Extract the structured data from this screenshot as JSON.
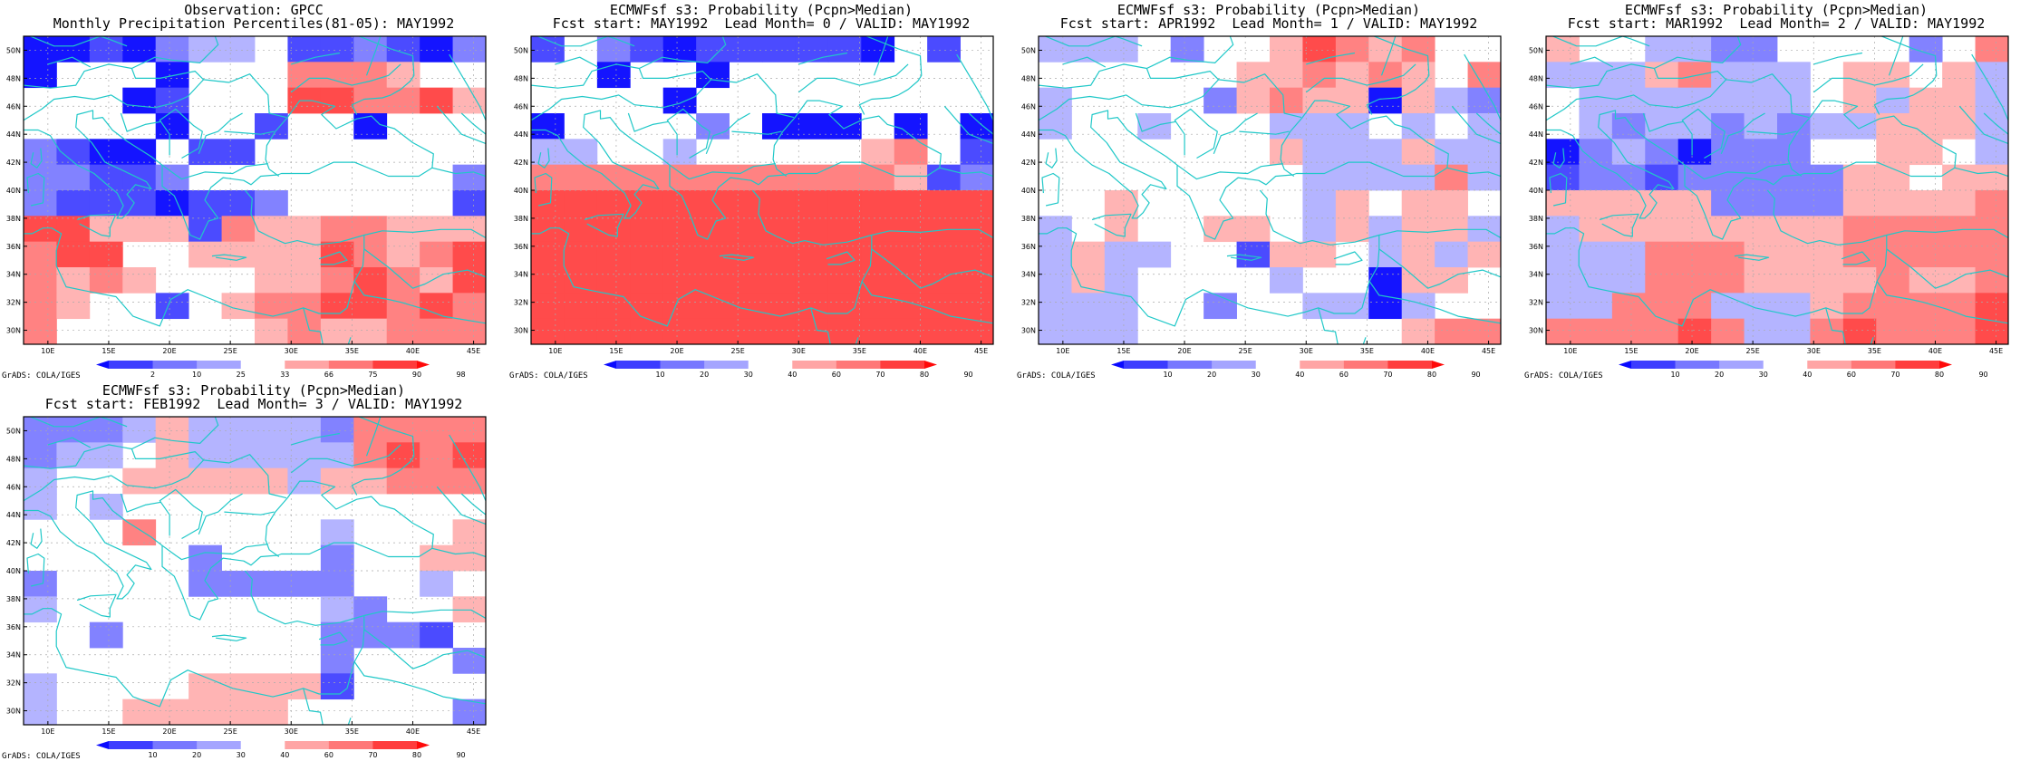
{
  "panels": [
    {
      "id": "obs",
      "title1": "Observation: GPCC",
      "title2": "Monthly Precipitation Percentiles(81-05): MAY1992",
      "colorbar_labels": [
        "2",
        "10",
        "25",
        "33",
        "66",
        "75",
        "90",
        "98"
      ],
      "grid": [
        [
          1,
          1,
          2,
          1,
          3,
          4,
          4,
          0,
          2,
          2,
          3,
          2,
          1,
          3
        ],
        [
          1,
          0,
          0,
          0,
          1,
          0,
          0,
          0,
          6,
          6,
          6,
          5,
          0,
          0
        ],
        [
          0,
          0,
          0,
          1,
          2,
          0,
          0,
          0,
          7,
          7,
          6,
          6,
          7,
          5
        ],
        [
          0,
          0,
          0,
          0,
          1,
          0,
          0,
          2,
          0,
          0,
          1,
          0,
          0,
          0
        ],
        [
          3,
          2,
          1,
          1,
          0,
          2,
          2,
          0,
          0,
          0,
          0,
          0,
          0,
          0
        ],
        [
          3,
          3,
          2,
          2,
          3,
          0,
          0,
          0,
          0,
          0,
          0,
          0,
          0,
          3
        ],
        [
          3,
          2,
          2,
          2,
          1,
          2,
          2,
          3,
          0,
          0,
          0,
          0,
          0,
          2
        ],
        [
          7,
          7,
          5,
          5,
          5,
          2,
          6,
          5,
          5,
          6,
          6,
          5,
          5,
          5
        ],
        [
          6,
          7,
          7,
          0,
          0,
          5,
          5,
          5,
          5,
          7,
          6,
          5,
          6,
          7
        ],
        [
          6,
          5,
          6,
          5,
          0,
          0,
          0,
          5,
          5,
          6,
          7,
          6,
          5,
          7
        ],
        [
          6,
          5,
          0,
          0,
          2,
          0,
          5,
          6,
          6,
          7,
          7,
          6,
          7,
          6
        ],
        [
          6,
          0,
          0,
          0,
          0,
          0,
          0,
          5,
          6,
          5,
          5,
          6,
          6,
          6
        ]
      ]
    },
    {
      "id": "lead0",
      "title1": "ECMWFsf s3: Probability (Pcpn>Median)",
      "title2": "Fcst start: MAY1992  Lead Month= 0 / VALID: MAY1992",
      "colorbar_labels": [
        "10",
        "20",
        "30",
        "40",
        "60",
        "70",
        "80",
        "90"
      ],
      "grid": [
        [
          2,
          0,
          3,
          2,
          1,
          2,
          2,
          2,
          2,
          2,
          1,
          0,
          2,
          0
        ],
        [
          0,
          0,
          1,
          0,
          0,
          1,
          0,
          0,
          0,
          0,
          0,
          0,
          0,
          0
        ],
        [
          0,
          0,
          0,
          0,
          1,
          0,
          0,
          0,
          0,
          0,
          0,
          0,
          0,
          0
        ],
        [
          1,
          0,
          0,
          0,
          0,
          3,
          0,
          1,
          1,
          1,
          0,
          1,
          0,
          1
        ],
        [
          4,
          4,
          0,
          0,
          4,
          0,
          0,
          0,
          0,
          0,
          5,
          6,
          0,
          2
        ],
        [
          6,
          6,
          6,
          6,
          6,
          6,
          6,
          6,
          6,
          6,
          6,
          5,
          2,
          3
        ],
        [
          7,
          7,
          7,
          7,
          7,
          7,
          7,
          7,
          7,
          7,
          7,
          7,
          7,
          7
        ],
        [
          7,
          7,
          7,
          7,
          7,
          7,
          7,
          7,
          7,
          7,
          7,
          7,
          7,
          7
        ],
        [
          7,
          7,
          7,
          7,
          7,
          7,
          7,
          7,
          7,
          7,
          7,
          7,
          7,
          7
        ],
        [
          7,
          7,
          7,
          7,
          7,
          7,
          7,
          7,
          7,
          7,
          7,
          7,
          7,
          7
        ],
        [
          7,
          7,
          7,
          7,
          7,
          7,
          7,
          7,
          7,
          7,
          7,
          7,
          7,
          7
        ],
        [
          7,
          7,
          7,
          7,
          7,
          7,
          7,
          7,
          7,
          7,
          7,
          7,
          7,
          7
        ]
      ]
    },
    {
      "id": "lead1",
      "title1": "ECMWFsf s3: Probability (Pcpn>Median)",
      "title2": "Fcst start: APR1992  Lead Month= 1 / VALID: MAY1992",
      "colorbar_labels": [
        "10",
        "20",
        "30",
        "40",
        "60",
        "70",
        "80",
        "90"
      ],
      "grid": [
        [
          4,
          4,
          4,
          0,
          3,
          0,
          0,
          5,
          7,
          6,
          5,
          6,
          0,
          0
        ],
        [
          0,
          0,
          0,
          0,
          0,
          0,
          5,
          5,
          6,
          5,
          6,
          5,
          0,
          6
        ],
        [
          4,
          0,
          0,
          0,
          0,
          3,
          5,
          6,
          5,
          5,
          1,
          5,
          4,
          3
        ],
        [
          4,
          0,
          0,
          4,
          0,
          0,
          0,
          4,
          4,
          4,
          0,
          4,
          0,
          4
        ],
        [
          0,
          0,
          0,
          0,
          0,
          0,
          0,
          5,
          4,
          4,
          4,
          5,
          4,
          4
        ],
        [
          0,
          0,
          0,
          0,
          0,
          0,
          0,
          0,
          4,
          4,
          4,
          4,
          6,
          4
        ],
        [
          0,
          0,
          5,
          0,
          0,
          0,
          0,
          0,
          4,
          5,
          0,
          5,
          5,
          0
        ],
        [
          4,
          0,
          5,
          0,
          0,
          5,
          5,
          0,
          4,
          5,
          4,
          5,
          5,
          4
        ],
        [
          4,
          5,
          4,
          4,
          0,
          0,
          2,
          5,
          5,
          0,
          4,
          5,
          4,
          5
        ],
        [
          4,
          5,
          4,
          0,
          0,
          0,
          0,
          4,
          0,
          0,
          1,
          5,
          5,
          0
        ],
        [
          4,
          4,
          4,
          0,
          0,
          3,
          0,
          0,
          4,
          4,
          1,
          4,
          0,
          0
        ],
        [
          4,
          4,
          4,
          0,
          0,
          0,
          0,
          0,
          0,
          0,
          0,
          5,
          6,
          6
        ]
      ]
    },
    {
      "id": "lead2",
      "title1": "ECMWFsf s3: Probability (Pcpn>Median)",
      "title2": "Fcst start: MAR1992  Lead Month= 2 / VALID: MAY1992",
      "colorbar_labels": [
        "10",
        "20",
        "30",
        "40",
        "60",
        "70",
        "80",
        "90"
      ],
      "grid": [
        [
          5,
          0,
          0,
          4,
          4,
          3,
          3,
          0,
          0,
          0,
          0,
          3,
          0,
          6
        ],
        [
          4,
          4,
          4,
          5,
          6,
          4,
          4,
          4,
          0,
          5,
          5,
          0,
          5,
          4
        ],
        [
          0,
          4,
          4,
          4,
          4,
          4,
          4,
          4,
          0,
          5,
          4,
          5,
          5,
          4
        ],
        [
          0,
          4,
          3,
          4,
          4,
          3,
          4,
          3,
          4,
          4,
          5,
          5,
          5,
          4
        ],
        [
          1,
          3,
          4,
          3,
          1,
          3,
          3,
          3,
          0,
          0,
          5,
          5,
          0,
          4
        ],
        [
          2,
          3,
          3,
          2,
          3,
          3,
          3,
          3,
          3,
          5,
          5,
          0,
          5,
          5
        ],
        [
          5,
          5,
          5,
          5,
          5,
          3,
          3,
          3,
          3,
          5,
          5,
          5,
          5,
          6
        ],
        [
          4,
          5,
          5,
          5,
          5,
          5,
          5,
          5,
          5,
          6,
          6,
          6,
          6,
          6
        ],
        [
          4,
          4,
          4,
          6,
          6,
          6,
          5,
          5,
          5,
          6,
          6,
          6,
          6,
          6
        ],
        [
          4,
          4,
          4,
          6,
          6,
          6,
          5,
          5,
          5,
          5,
          6,
          5,
          5,
          6
        ],
        [
          4,
          4,
          6,
          6,
          6,
          4,
          4,
          4,
          5,
          6,
          6,
          6,
          6,
          7
        ],
        [
          6,
          6,
          6,
          6,
          7,
          6,
          4,
          4,
          6,
          7,
          6,
          6,
          6,
          7
        ]
      ]
    },
    {
      "id": "lead3",
      "title1": "ECMWFsf s3: Probability (Pcpn>Median)",
      "title2": "Fcst start: FEB1992  Lead Month= 3 / VALID: MAY1992",
      "colorbar_labels": [
        "10",
        "20",
        "30",
        "40",
        "60",
        "70",
        "80",
        "90"
      ],
      "grid": [
        [
          3,
          3,
          3,
          4,
          5,
          4,
          4,
          4,
          4,
          3,
          6,
          6,
          6,
          6
        ],
        [
          3,
          4,
          4,
          0,
          5,
          4,
          4,
          4,
          4,
          4,
          6,
          7,
          6,
          7
        ],
        [
          4,
          0,
          0,
          5,
          5,
          5,
          5,
          5,
          4,
          5,
          5,
          6,
          6,
          6
        ],
        [
          4,
          0,
          4,
          0,
          0,
          0,
          0,
          0,
          0,
          0,
          0,
          0,
          0,
          0
        ],
        [
          0,
          0,
          0,
          6,
          0,
          0,
          0,
          0,
          0,
          4,
          0,
          0,
          0,
          5
        ],
        [
          0,
          0,
          0,
          0,
          0,
          3,
          0,
          0,
          0,
          3,
          0,
          0,
          5,
          5
        ],
        [
          3,
          0,
          0,
          0,
          0,
          3,
          3,
          3,
          3,
          3,
          0,
          0,
          4,
          0
        ],
        [
          4,
          0,
          0,
          0,
          0,
          0,
          0,
          0,
          0,
          4,
          3,
          0,
          0,
          5
        ],
        [
          0,
          0,
          3,
          0,
          0,
          0,
          0,
          0,
          0,
          3,
          3,
          3,
          2,
          0
        ],
        [
          0,
          0,
          0,
          0,
          0,
          0,
          0,
          0,
          0,
          3,
          0,
          0,
          0,
          3
        ],
        [
          4,
          0,
          0,
          0,
          0,
          5,
          5,
          5,
          5,
          2,
          0,
          0,
          0,
          0
        ],
        [
          4,
          0,
          0,
          5,
          5,
          5,
          5,
          5,
          0,
          0,
          0,
          0,
          0,
          3
        ]
      ]
    }
  ],
  "axis": {
    "lat_labels": [
      "50N",
      "48N",
      "46N",
      "44N",
      "42N",
      "40N",
      "38N",
      "36N",
      "34N",
      "32N",
      "30N"
    ],
    "lon_labels": [
      "10E",
      "15E",
      "20E",
      "25E",
      "30E",
      "35E",
      "40E",
      "45E"
    ]
  },
  "colors": {
    "palette": [
      "#ffffff",
      "#1414ff",
      "#4b4bff",
      "#8282ff",
      "#b4b4ff",
      "#ffb4b4",
      "#ff8282",
      "#ff4b4b",
      "#ff1414"
    ],
    "cb_palette": [
      "#0a0aff",
      "#3c3cff",
      "#7878ff",
      "#a5a5ff",
      "#ffffff",
      "#ffa5a5",
      "#ff7878",
      "#ff3c3c",
      "#ff0a0a"
    ],
    "coast": "#20c8c8",
    "grid_line": "#aaaaaa"
  },
  "credit": "GrADS: COLA/IGES"
}
